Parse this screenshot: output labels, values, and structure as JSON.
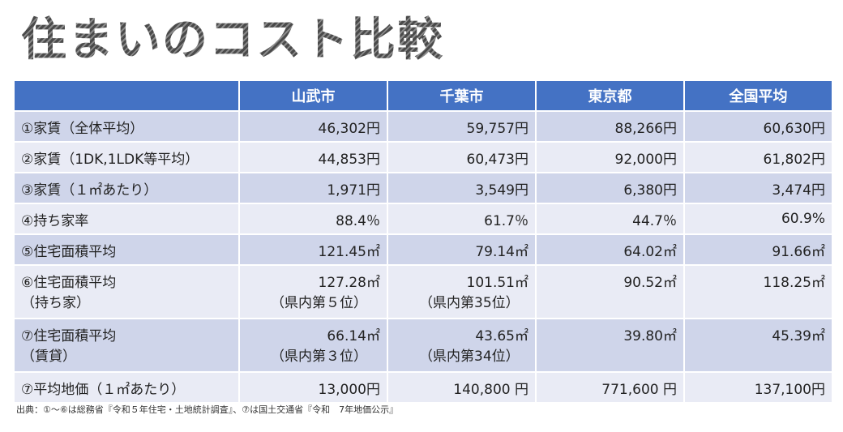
{
  "title": "住まいのコスト比較",
  "headers": [
    "",
    "山武市",
    "千葉市",
    "東京都",
    "全国平均"
  ],
  "rows": [
    {
      "label": [
        "①家賃（全体平均）"
      ],
      "cells": [
        [
          "46,302円"
        ],
        [
          "59,757円"
        ],
        [
          "88,266円"
        ],
        [
          "60,630円"
        ]
      ]
    },
    {
      "label": [
        "②家賃（1DK,1LDK等平均）"
      ],
      "cells": [
        [
          "44,853円"
        ],
        [
          "60,473円"
        ],
        [
          "92,000円"
        ],
        [
          "61,802円"
        ]
      ]
    },
    {
      "label": [
        "③家賃（１㎡あたり）"
      ],
      "cells": [
        [
          "1,971円"
        ],
        [
          "3,549円"
        ],
        [
          "6,380円"
        ],
        [
          "3,474円"
        ]
      ]
    },
    {
      "label": [
        "④持ち家率"
      ],
      "cells": [
        [
          "88.4％"
        ],
        [
          "61.7％"
        ],
        [
          "44.7％"
        ],
        [
          "60.9%"
        ]
      ]
    },
    {
      "label": [
        "⑤住宅面積平均"
      ],
      "cells": [
        [
          "121.45㎡"
        ],
        [
          "79.14㎡"
        ],
        [
          "64.02㎡"
        ],
        [
          "91.66㎡"
        ]
      ]
    },
    {
      "label": [
        "⑥住宅面積平均",
        "（持ち家）"
      ],
      "cells": [
        [
          "127.28㎡",
          "（県内第５位）"
        ],
        [
          "101.51㎡",
          "（県内第35位）"
        ],
        [
          "90.52㎡"
        ],
        [
          "118.25㎡"
        ]
      ]
    },
    {
      "label": [
        "⑦住宅面積平均",
        "（賃貸）"
      ],
      "cells": [
        [
          "66.14㎡",
          "（県内第３位）"
        ],
        [
          "43.65㎡",
          "（県内第34位）"
        ],
        [
          "39.80㎡"
        ],
        [
          "45.39㎡"
        ]
      ]
    },
    {
      "label": [
        "⑦平均地価（１㎡あたり）"
      ],
      "cells": [
        [
          "13,000円"
        ],
        [
          "140,800 円"
        ],
        [
          "771,600 円"
        ],
        [
          "137,100円"
        ]
      ]
    }
  ],
  "note": "出典：①～⑥は総務省『令和５年住宅・土地統計調査』、⑦は国土交通省『令和　7年地価公示』"
}
